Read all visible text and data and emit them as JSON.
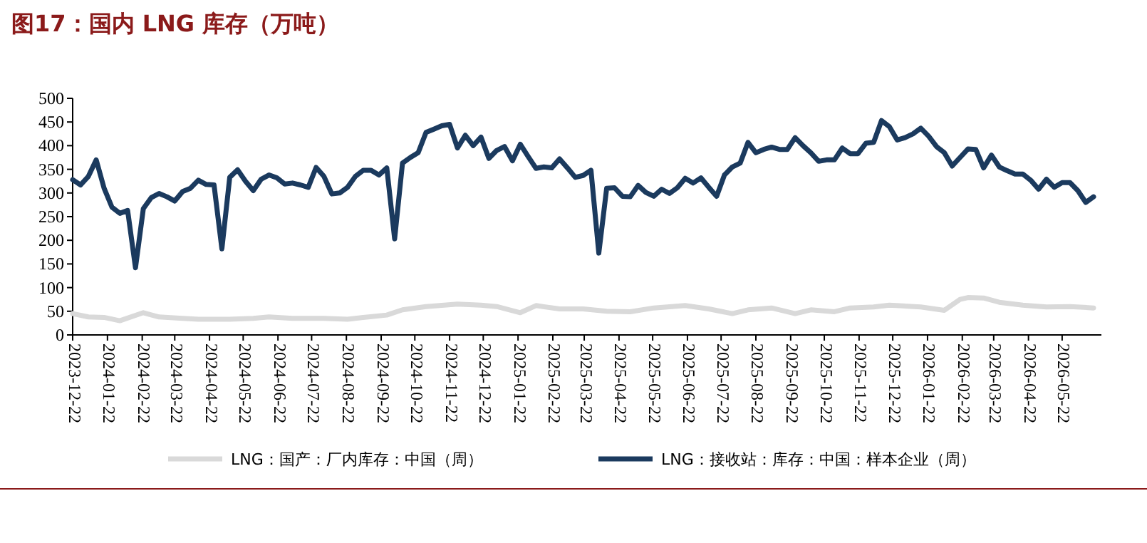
{
  "chart_data": {
    "type": "line",
    "title": "图17：国内 LNG 库存（万吨）",
    "xlim": [
      "2023-12-22",
      "2026-06-26"
    ],
    "xticks": [
      "2023-12-22",
      "2024-01-22",
      "2024-02-22",
      "2024-03-22",
      "2024-04-22",
      "2024-05-22",
      "2024-06-22",
      "2024-07-22",
      "2024-08-22",
      "2024-09-22",
      "2024-10-22",
      "2024-11-22",
      "2024-12-22",
      "2025-01-22",
      "2025-02-22",
      "2025-03-22",
      "2025-04-22",
      "2025-05-22",
      "2025-06-22",
      "2025-07-22",
      "2025-08-22",
      "2025-09-22",
      "2025-10-22",
      "2025-11-22",
      "2025-12-22",
      "2026-01-22",
      "2026-02-22",
      "2026-03-22",
      "2026-04-22",
      "2026-05-22"
    ],
    "ylim": [
      0,
      500
    ],
    "yticks": [
      0,
      50,
      100,
      150,
      200,
      250,
      300,
      350,
      400,
      450,
      500
    ],
    "grid": false,
    "legend": "bottom",
    "marker": "none",
    "line_style": "solid",
    "series": [
      {
        "name": "LNG：国产：厂内库存：中国（周）",
        "color": "#d9d9d9",
        "x": [
          "2023-12-22",
          "2024-01-05",
          "2024-01-19",
          "2024-02-02",
          "2024-02-23",
          "2024-03-08",
          "2024-03-29",
          "2024-04-12",
          "2024-05-10",
          "2024-05-31",
          "2024-06-14",
          "2024-07-05",
          "2024-08-02",
          "2024-08-23",
          "2024-09-06",
          "2024-09-27",
          "2024-10-11",
          "2024-11-01",
          "2024-11-29",
          "2024-12-20",
          "2025-01-03",
          "2025-01-24",
          "2025-02-07",
          "2025-02-28",
          "2025-03-21",
          "2025-04-11",
          "2025-05-02",
          "2025-05-23",
          "2025-06-20",
          "2025-07-11",
          "2025-08-01",
          "2025-08-15",
          "2025-09-05",
          "2025-09-26",
          "2025-10-10",
          "2025-10-31",
          "2025-11-14",
          "2025-12-05",
          "2025-12-19",
          "2026-01-16",
          "2026-02-06",
          "2026-02-20",
          "2026-02-27",
          "2026-03-13",
          "2026-03-27",
          "2026-04-17",
          "2026-05-08",
          "2026-05-29",
          "2026-06-19"
        ],
        "values": [
          45,
          38,
          37,
          30,
          47,
          38,
          35,
          33,
          33,
          35,
          38,
          35,
          35,
          33,
          37,
          42,
          53,
          60,
          65,
          63,
          60,
          47,
          62,
          55,
          55,
          50,
          49,
          57,
          62,
          55,
          45,
          53,
          57,
          45,
          53,
          49,
          57,
          59,
          63,
          59,
          52,
          75,
          79,
          78,
          69,
          63,
          59,
          60,
          57
        ]
      },
      {
        "name": "LNG：接收站：库存：中国：样本企业（周）",
        "color": "#1b3a5e",
        "x": [
          "2023-12-22",
          "2023-12-29",
          "2024-01-05",
          "2024-01-12",
          "2024-01-19",
          "2024-01-26",
          "2024-02-02",
          "2024-02-09",
          "2024-02-16",
          "2024-02-23",
          "2024-03-01",
          "2024-03-08",
          "2024-03-15",
          "2024-03-22",
          "2024-03-29",
          "2024-04-05",
          "2024-04-12",
          "2024-04-19",
          "2024-04-26",
          "2024-05-03",
          "2024-05-10",
          "2024-05-17",
          "2024-05-24",
          "2024-05-31",
          "2024-06-07",
          "2024-06-14",
          "2024-06-21",
          "2024-06-28",
          "2024-07-05",
          "2024-07-12",
          "2024-07-19",
          "2024-07-26",
          "2024-08-02",
          "2024-08-09",
          "2024-08-16",
          "2024-08-23",
          "2024-08-30",
          "2024-09-06",
          "2024-09-13",
          "2024-09-20",
          "2024-09-27",
          "2024-10-04",
          "2024-10-11",
          "2024-10-18",
          "2024-10-25",
          "2024-11-01",
          "2024-11-08",
          "2024-11-15",
          "2024-11-22",
          "2024-11-29",
          "2024-12-06",
          "2024-12-13",
          "2024-12-20",
          "2024-12-27",
          "2025-01-03",
          "2025-01-10",
          "2025-01-17",
          "2025-01-24",
          "2025-01-31",
          "2025-02-07",
          "2025-02-14",
          "2025-02-21",
          "2025-02-28",
          "2025-03-07",
          "2025-03-14",
          "2025-03-21",
          "2025-03-28",
          "2025-04-04",
          "2025-04-11",
          "2025-04-18",
          "2025-04-25",
          "2025-05-02",
          "2025-05-09",
          "2025-05-16",
          "2025-05-23",
          "2025-05-30",
          "2025-06-06",
          "2025-06-13",
          "2025-06-20",
          "2025-06-27",
          "2025-07-04",
          "2025-07-11",
          "2025-07-18",
          "2025-07-25",
          "2025-08-01",
          "2025-08-08",
          "2025-08-15",
          "2025-08-22",
          "2025-08-29",
          "2025-09-05",
          "2025-09-12",
          "2025-09-19",
          "2025-09-26",
          "2025-10-03",
          "2025-10-10",
          "2025-10-17",
          "2025-10-24",
          "2025-10-31",
          "2025-11-07",
          "2025-11-14",
          "2025-11-21",
          "2025-11-28",
          "2025-12-05",
          "2025-12-12",
          "2025-12-19",
          "2025-12-26",
          "2026-01-02",
          "2026-01-09",
          "2026-01-16",
          "2026-01-23",
          "2026-01-30",
          "2026-02-06",
          "2026-02-13",
          "2026-02-20",
          "2026-02-27",
          "2026-03-06",
          "2026-03-13",
          "2026-03-20",
          "2026-03-27",
          "2026-04-03",
          "2026-04-10",
          "2026-04-17",
          "2026-04-24",
          "2026-05-01",
          "2026-05-08",
          "2026-05-15",
          "2026-05-22",
          "2026-05-29",
          "2026-06-05",
          "2026-06-12",
          "2026-06-19"
        ],
        "values": [
          328,
          317,
          335,
          370,
          310,
          270,
          257,
          263,
          142,
          267,
          290,
          299,
          292,
          283,
          303,
          310,
          327,
          318,
          317,
          182,
          333,
          349,
          325,
          305,
          329,
          338,
          332,
          319,
          321,
          317,
          312,
          354,
          335,
          298,
          300,
          312,
          335,
          348,
          348,
          338,
          353,
          203,
          363,
          375,
          385,
          428,
          435,
          442,
          445,
          395,
          422,
          400,
          418,
          373,
          390,
          398,
          368,
          403,
          377,
          352,
          355,
          353,
          372,
          353,
          333,
          337,
          348,
          173,
          310,
          311,
          293,
          292,
          316,
          301,
          293,
          308,
          299,
          311,
          331,
          321,
          332,
          312,
          293,
          338,
          355,
          363,
          407,
          385,
          392,
          397,
          392,
          392,
          417,
          400,
          385,
          367,
          370,
          370,
          395,
          383,
          383,
          405,
          407,
          453,
          440,
          412,
          417,
          425,
          437,
          420,
          398,
          385,
          357,
          375,
          393,
          392,
          353,
          380,
          355,
          347,
          340,
          340,
          327,
          308,
          329,
          312,
          322,
          322,
          305,
          280,
          292
        ]
      }
    ]
  }
}
